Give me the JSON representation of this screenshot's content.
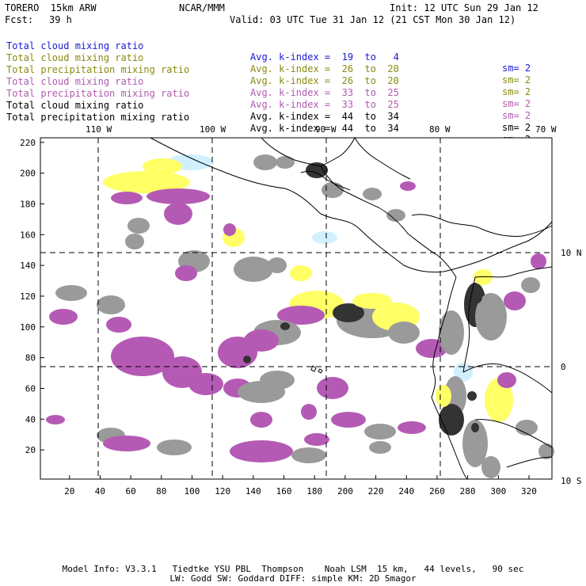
{
  "header": {
    "model_name": "TORERO  15km ARW",
    "org": "NCAR/MMM",
    "init": "Init: 12 UTC Sun 29 Jan 12",
    "fcst_label": "Fcst:",
    "fcst_value": "39 h",
    "valid": "Valid: 03 UTC Tue 31 Jan 12 (21 CST Mon 30 Jan 12)"
  },
  "legend": [
    {
      "field": "Total cloud mixing ratio",
      "index": "Avg. k-index =  19  to   4",
      "sm": "sm= 2",
      "color": "#1a1ad6"
    },
    {
      "field": "Total cloud mixing ratio",
      "index": "Avg. k-index =  26  to  20",
      "sm": "sm= 2",
      "color": "#8a8a10"
    },
    {
      "field": "Total precipitation mixing ratio",
      "index": "Avg. k-index =  26  to  20",
      "sm": "sm= 2",
      "color": "#8a8a10"
    },
    {
      "field": "Total cloud mixing ratio",
      "index": "Avg. k-index =  33  to  25",
      "sm": "sm= 2",
      "color": "#b05ab0"
    },
    {
      "field": "Total precipitation mixing ratio",
      "index": "Avg. k-index =  33  to  25",
      "sm": "sm= 2",
      "color": "#b05ab0"
    },
    {
      "field": "Total cloud mixing ratio",
      "index": "Avg. k-index =  44  to  34",
      "sm": "sm= 2",
      "color": "#000000"
    },
    {
      "field": "Total precipitation mixing ratio",
      "index": "Avg. k-index =  44  to  34",
      "sm": "sm= 2",
      "color": "#000000"
    }
  ],
  "map": {
    "lon_labels": [
      "110 W",
      "100 W",
      "90 W",
      "80 W",
      "70 W"
    ],
    "lat_labels": [
      "10 N",
      "0",
      "10 S"
    ],
    "y_ticks": [
      "220",
      "200",
      "180",
      "160",
      "140",
      "120",
      "100",
      "80",
      "60",
      "40",
      "20"
    ],
    "x_ticks": [
      "20",
      "40",
      "60",
      "80",
      "100",
      "120",
      "140",
      "160",
      "180",
      "200",
      "220",
      "240",
      "260",
      "280",
      "300",
      "320"
    ],
    "colors": {
      "gray": "#9a9a9a",
      "dark": "#333333",
      "purple": "#b45ab4",
      "yellow": "#ffff66",
      "cyan": "#cceeff"
    }
  },
  "footer": {
    "line1": "Model Info: V3.3.1   Tiedtke YSU PBL  Thompson    Noah LSM  15 km,   44 levels,   90 sec",
    "line2": "LW: Godd SW: Goddard DIFF: simple KM: 2D Smagor"
  }
}
